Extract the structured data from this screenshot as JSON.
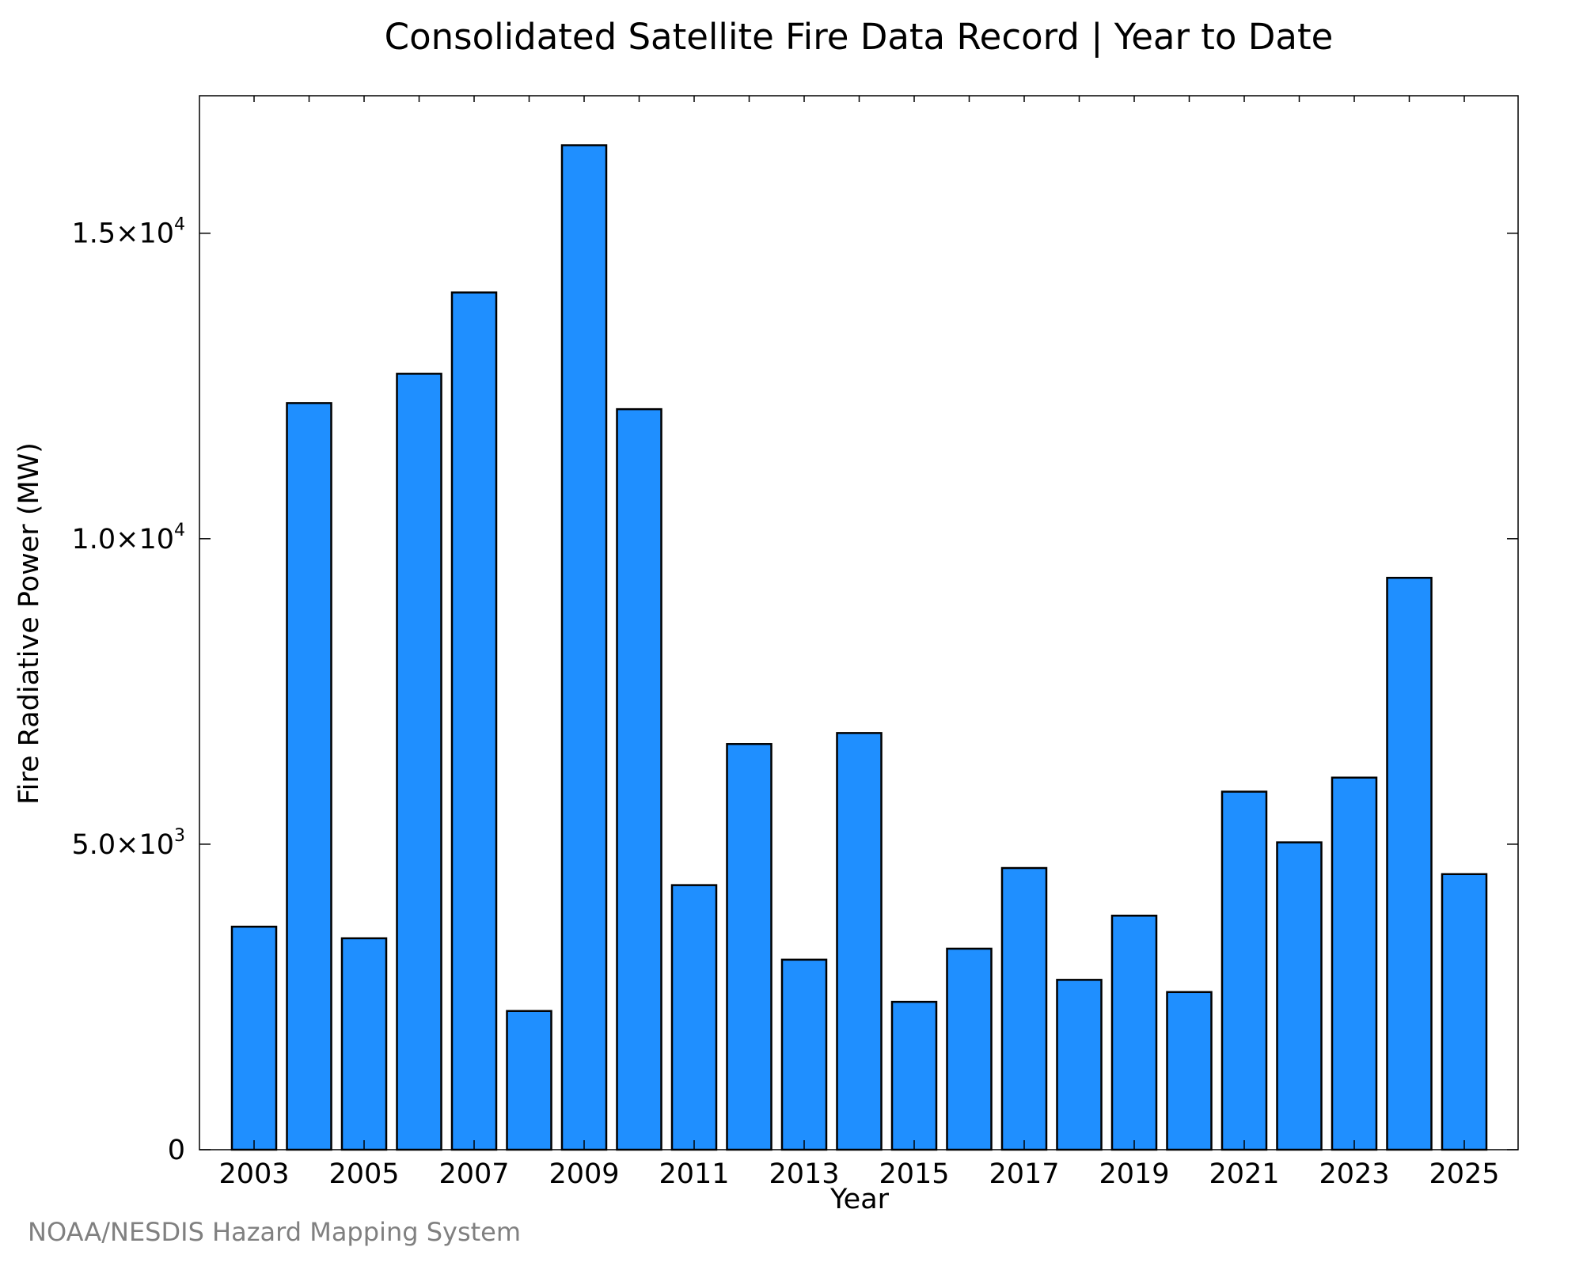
{
  "chart_data": {
    "type": "bar",
    "title": "Consolidated Satellite Fire Data Record | Year to Date",
    "xlabel": "Year",
    "ylabel": "Fire Radiative Power (MW)",
    "categories": [
      "2003",
      "2004",
      "2005",
      "2006",
      "2007",
      "2008",
      "2009",
      "2010",
      "2011",
      "2012",
      "2013",
      "2014",
      "2015",
      "2016",
      "2017",
      "2018",
      "2019",
      "2020",
      "2021",
      "2022",
      "2023",
      "2024",
      "2025"
    ],
    "values": [
      3650,
      12220,
      3460,
      12700,
      14030,
      2270,
      16440,
      12120,
      4330,
      6640,
      3110,
      6820,
      2420,
      3290,
      4610,
      2780,
      3830,
      2580,
      5860,
      5030,
      6090,
      9360,
      4510
    ],
    "x_tick_labels": [
      "2003",
      "2005",
      "2007",
      "2009",
      "2011",
      "2013",
      "2015",
      "2017",
      "2019",
      "2021",
      "2023",
      "2025"
    ],
    "y_ticks": [
      {
        "value": 0,
        "mantissa": "0",
        "exp": ""
      },
      {
        "value": 5000,
        "mantissa": "5.0×10",
        "exp": "3"
      },
      {
        "value": 10000,
        "mantissa": "1.0×10",
        "exp": "4"
      },
      {
        "value": 15000,
        "mantissa": "1.5×10",
        "exp": "4"
      }
    ],
    "ylim": [
      0,
      17250
    ],
    "grid": false,
    "legend": "none",
    "colors": {
      "bar_fill": "#1f8fff",
      "bar_edge": "#000000",
      "axis": "#000000"
    }
  },
  "footer": {
    "credit": "NOAA/NESDIS Hazard Mapping System"
  }
}
